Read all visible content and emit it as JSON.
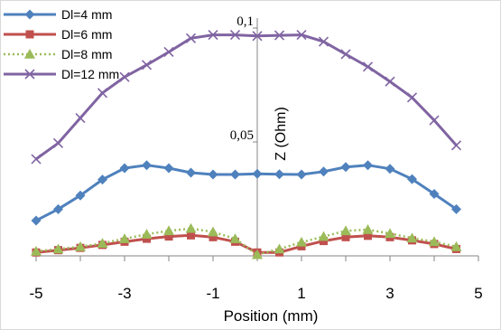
{
  "chart_data": {
    "type": "line",
    "xlabel": "Position (mm)",
    "ylabel": "Z  (Ohm)",
    "xlim": [
      -5,
      5
    ],
    "ylim": [
      0,
      0.1
    ],
    "x_ticks": [
      "-5",
      "-3",
      "-1",
      "1",
      "3",
      "5"
    ],
    "y_ticks": [
      "0,05",
      "0,1"
    ],
    "grid": false,
    "legend_position": "top-left",
    "series": [
      {
        "name": "Dl=4 mm",
        "color": "#4F81BD",
        "marker": "diamond",
        "x": [
          -5,
          -4.5,
          -4,
          -3.5,
          -3,
          -2.5,
          -2,
          -1.5,
          -1,
          -0.5,
          0,
          0.5,
          1,
          1.5,
          2,
          2.5,
          3,
          3.5,
          4,
          4.5
        ],
        "y": [
          0.0155,
          0.0205,
          0.0265,
          0.0335,
          0.0385,
          0.0398,
          0.0385,
          0.0365,
          0.0357,
          0.0357,
          0.036,
          0.0358,
          0.0357,
          0.037,
          0.039,
          0.0398,
          0.0382,
          0.0337,
          0.0272,
          0.0205
        ]
      },
      {
        "name": "Dl=6 mm",
        "color": "#C0504D",
        "marker": "square",
        "x": [
          -5,
          -4.5,
          -4,
          -3.5,
          -3,
          -2.5,
          -2,
          -1.5,
          -1,
          -0.5,
          0,
          0.5,
          1,
          1.5,
          2,
          2.5,
          3,
          3.5,
          4,
          4.5
        ],
        "y": [
          0.0015,
          0.0025,
          0.0035,
          0.0048,
          0.0062,
          0.0075,
          0.0085,
          0.009,
          0.0082,
          0.0062,
          0.0015,
          0.0015,
          0.0042,
          0.0065,
          0.0082,
          0.0088,
          0.0082,
          0.0068,
          0.0052,
          0.003
        ]
      },
      {
        "name": "Dl=8 mm",
        "color": "#9BBB59",
        "marker": "triangle",
        "x": [
          -5,
          -4.5,
          -4,
          -3.5,
          -3,
          -2.5,
          -2,
          -1.5,
          -1,
          -0.5,
          0,
          0.5,
          1,
          1.5,
          2,
          2.5,
          3,
          3.5,
          4,
          4.5
        ],
        "y": [
          0.002,
          0.003,
          0.004,
          0.0055,
          0.0075,
          0.0095,
          0.011,
          0.012,
          0.0105,
          0.0075,
          0.0005,
          0.003,
          0.006,
          0.0085,
          0.011,
          0.0115,
          0.0098,
          0.0078,
          0.0062,
          0.004
        ]
      },
      {
        "name": "Dl=12 mm",
        "color": "#8064A2",
        "marker": "x",
        "x": [
          -5,
          -4.5,
          -4,
          -3.5,
          -3,
          -2.5,
          -2,
          -1.5,
          -1,
          -0.5,
          0,
          0.5,
          1,
          1.5,
          2,
          2.5,
          3,
          3.5,
          4,
          4.5
        ],
        "y": [
          0.0425,
          0.0495,
          0.0605,
          0.0715,
          0.0785,
          0.0838,
          0.0895,
          0.0955,
          0.097,
          0.097,
          0.0965,
          0.0968,
          0.097,
          0.094,
          0.0885,
          0.083,
          0.0765,
          0.0695,
          0.0595,
          0.0485
        ]
      }
    ]
  }
}
